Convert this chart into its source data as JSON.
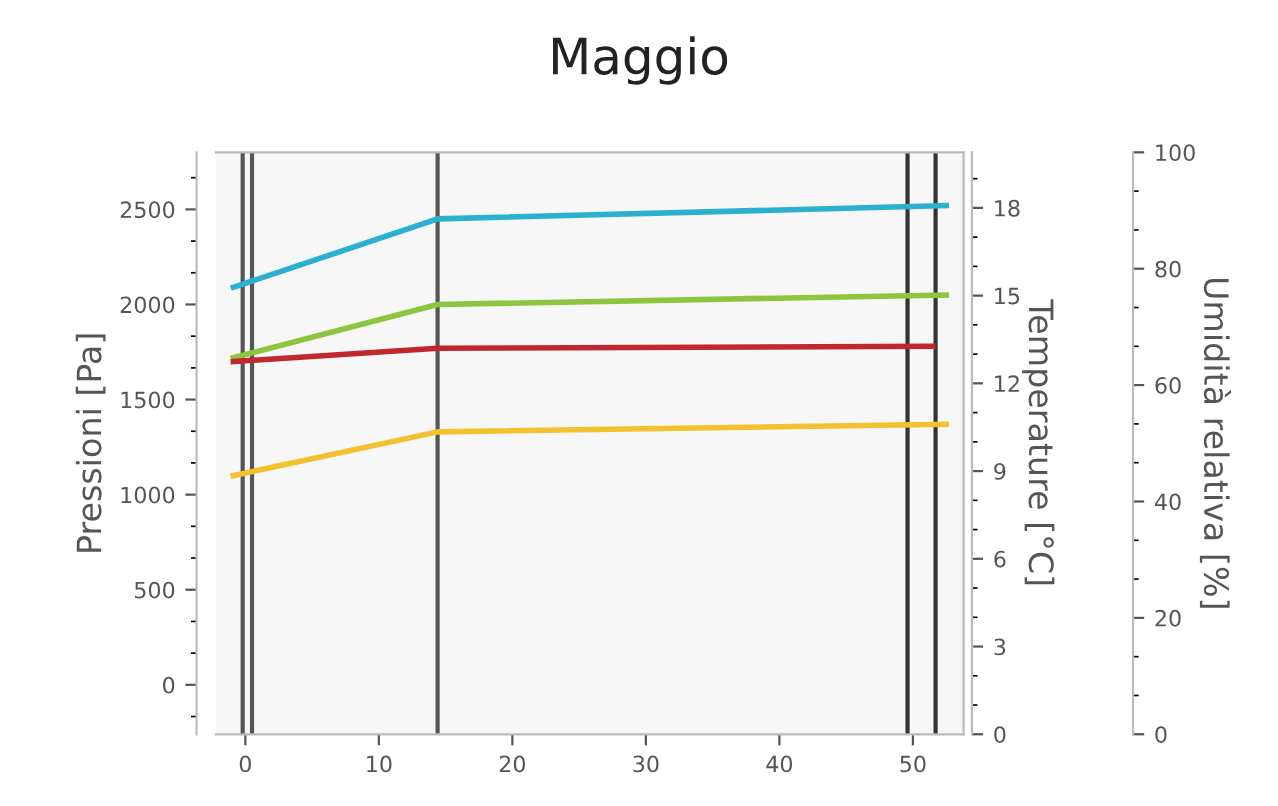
{
  "chart_data": {
    "type": "line",
    "title": "Maggio",
    "ylabel": "Pressioni [Pa]",
    "y2label": "Temperature [°C]",
    "y3label": "Umidità relativa [%]",
    "xlim": [
      -2.2,
      53.8
    ],
    "xticks": [
      0,
      10,
      20,
      30,
      40,
      50
    ],
    "ylim": [
      -260,
      2800
    ],
    "yticks": [
      0,
      500,
      1000,
      1500,
      2000,
      2500
    ],
    "y2lim": [
      0,
      19.9
    ],
    "y2ticks": [
      0,
      3,
      6,
      9,
      12,
      15,
      18
    ],
    "y3lim": [
      0,
      100
    ],
    "y3ticks": [
      0,
      20,
      40,
      60,
      80,
      100
    ],
    "grid": false,
    "marker": "none",
    "line_style": "solid",
    "series": [
      {
        "color": "#2ab0d0",
        "x": [
          -0.9,
          14.4,
          52.5
        ],
        "values": [
          2090,
          2450,
          2520
        ]
      },
      {
        "color": "#8cc63f",
        "x": [
          -0.9,
          14.4,
          52.5
        ],
        "values": [
          1720,
          2000,
          2050
        ]
      },
      {
        "color": "#c0282d",
        "x": [
          -0.9,
          14.4,
          51.5
        ],
        "values": [
          1700,
          1770,
          1780
        ]
      },
      {
        "color": "#f2c12e",
        "x": [
          -0.9,
          14.4,
          52.5
        ],
        "values": [
          1100,
          1330,
          1370
        ]
      }
    ],
    "ref_lines": [
      {
        "axis": "x",
        "value": -0.2,
        "color": "#555555"
      },
      {
        "axis": "x",
        "value": 0.5,
        "color": "#555555"
      },
      {
        "axis": "x",
        "value": 14.4,
        "color": "#555555"
      },
      {
        "axis": "x",
        "value": 49.6,
        "color": "#333333"
      },
      {
        "axis": "x",
        "value": 51.7,
        "color": "#333333"
      }
    ]
  }
}
